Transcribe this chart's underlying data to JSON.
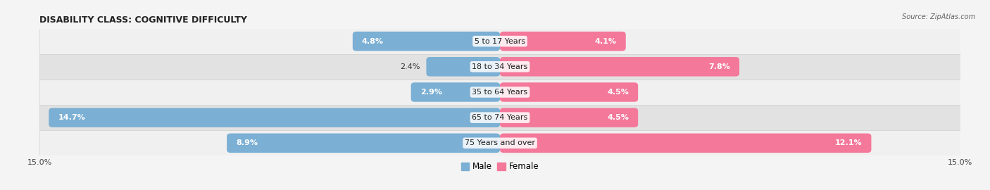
{
  "title": "DISABILITY CLASS: COGNITIVE DIFFICULTY",
  "source": "Source: ZipAtlas.com",
  "categories": [
    "5 to 17 Years",
    "18 to 34 Years",
    "35 to 64 Years",
    "65 to 74 Years",
    "75 Years and over"
  ],
  "male_values": [
    4.8,
    2.4,
    2.9,
    14.7,
    8.9
  ],
  "female_values": [
    4.1,
    7.8,
    4.5,
    4.5,
    12.1
  ],
  "x_max": 15.0,
  "male_color": "#7bafd4",
  "female_color": "#f4789a",
  "male_label": "Male",
  "female_label": "Female",
  "row_colors": [
    "#f0f0f0",
    "#e2e2e2"
  ],
  "title_fontsize": 9,
  "axis_fontsize": 8,
  "label_fontsize": 8,
  "value_fontsize": 8,
  "legend_fontsize": 8.5
}
